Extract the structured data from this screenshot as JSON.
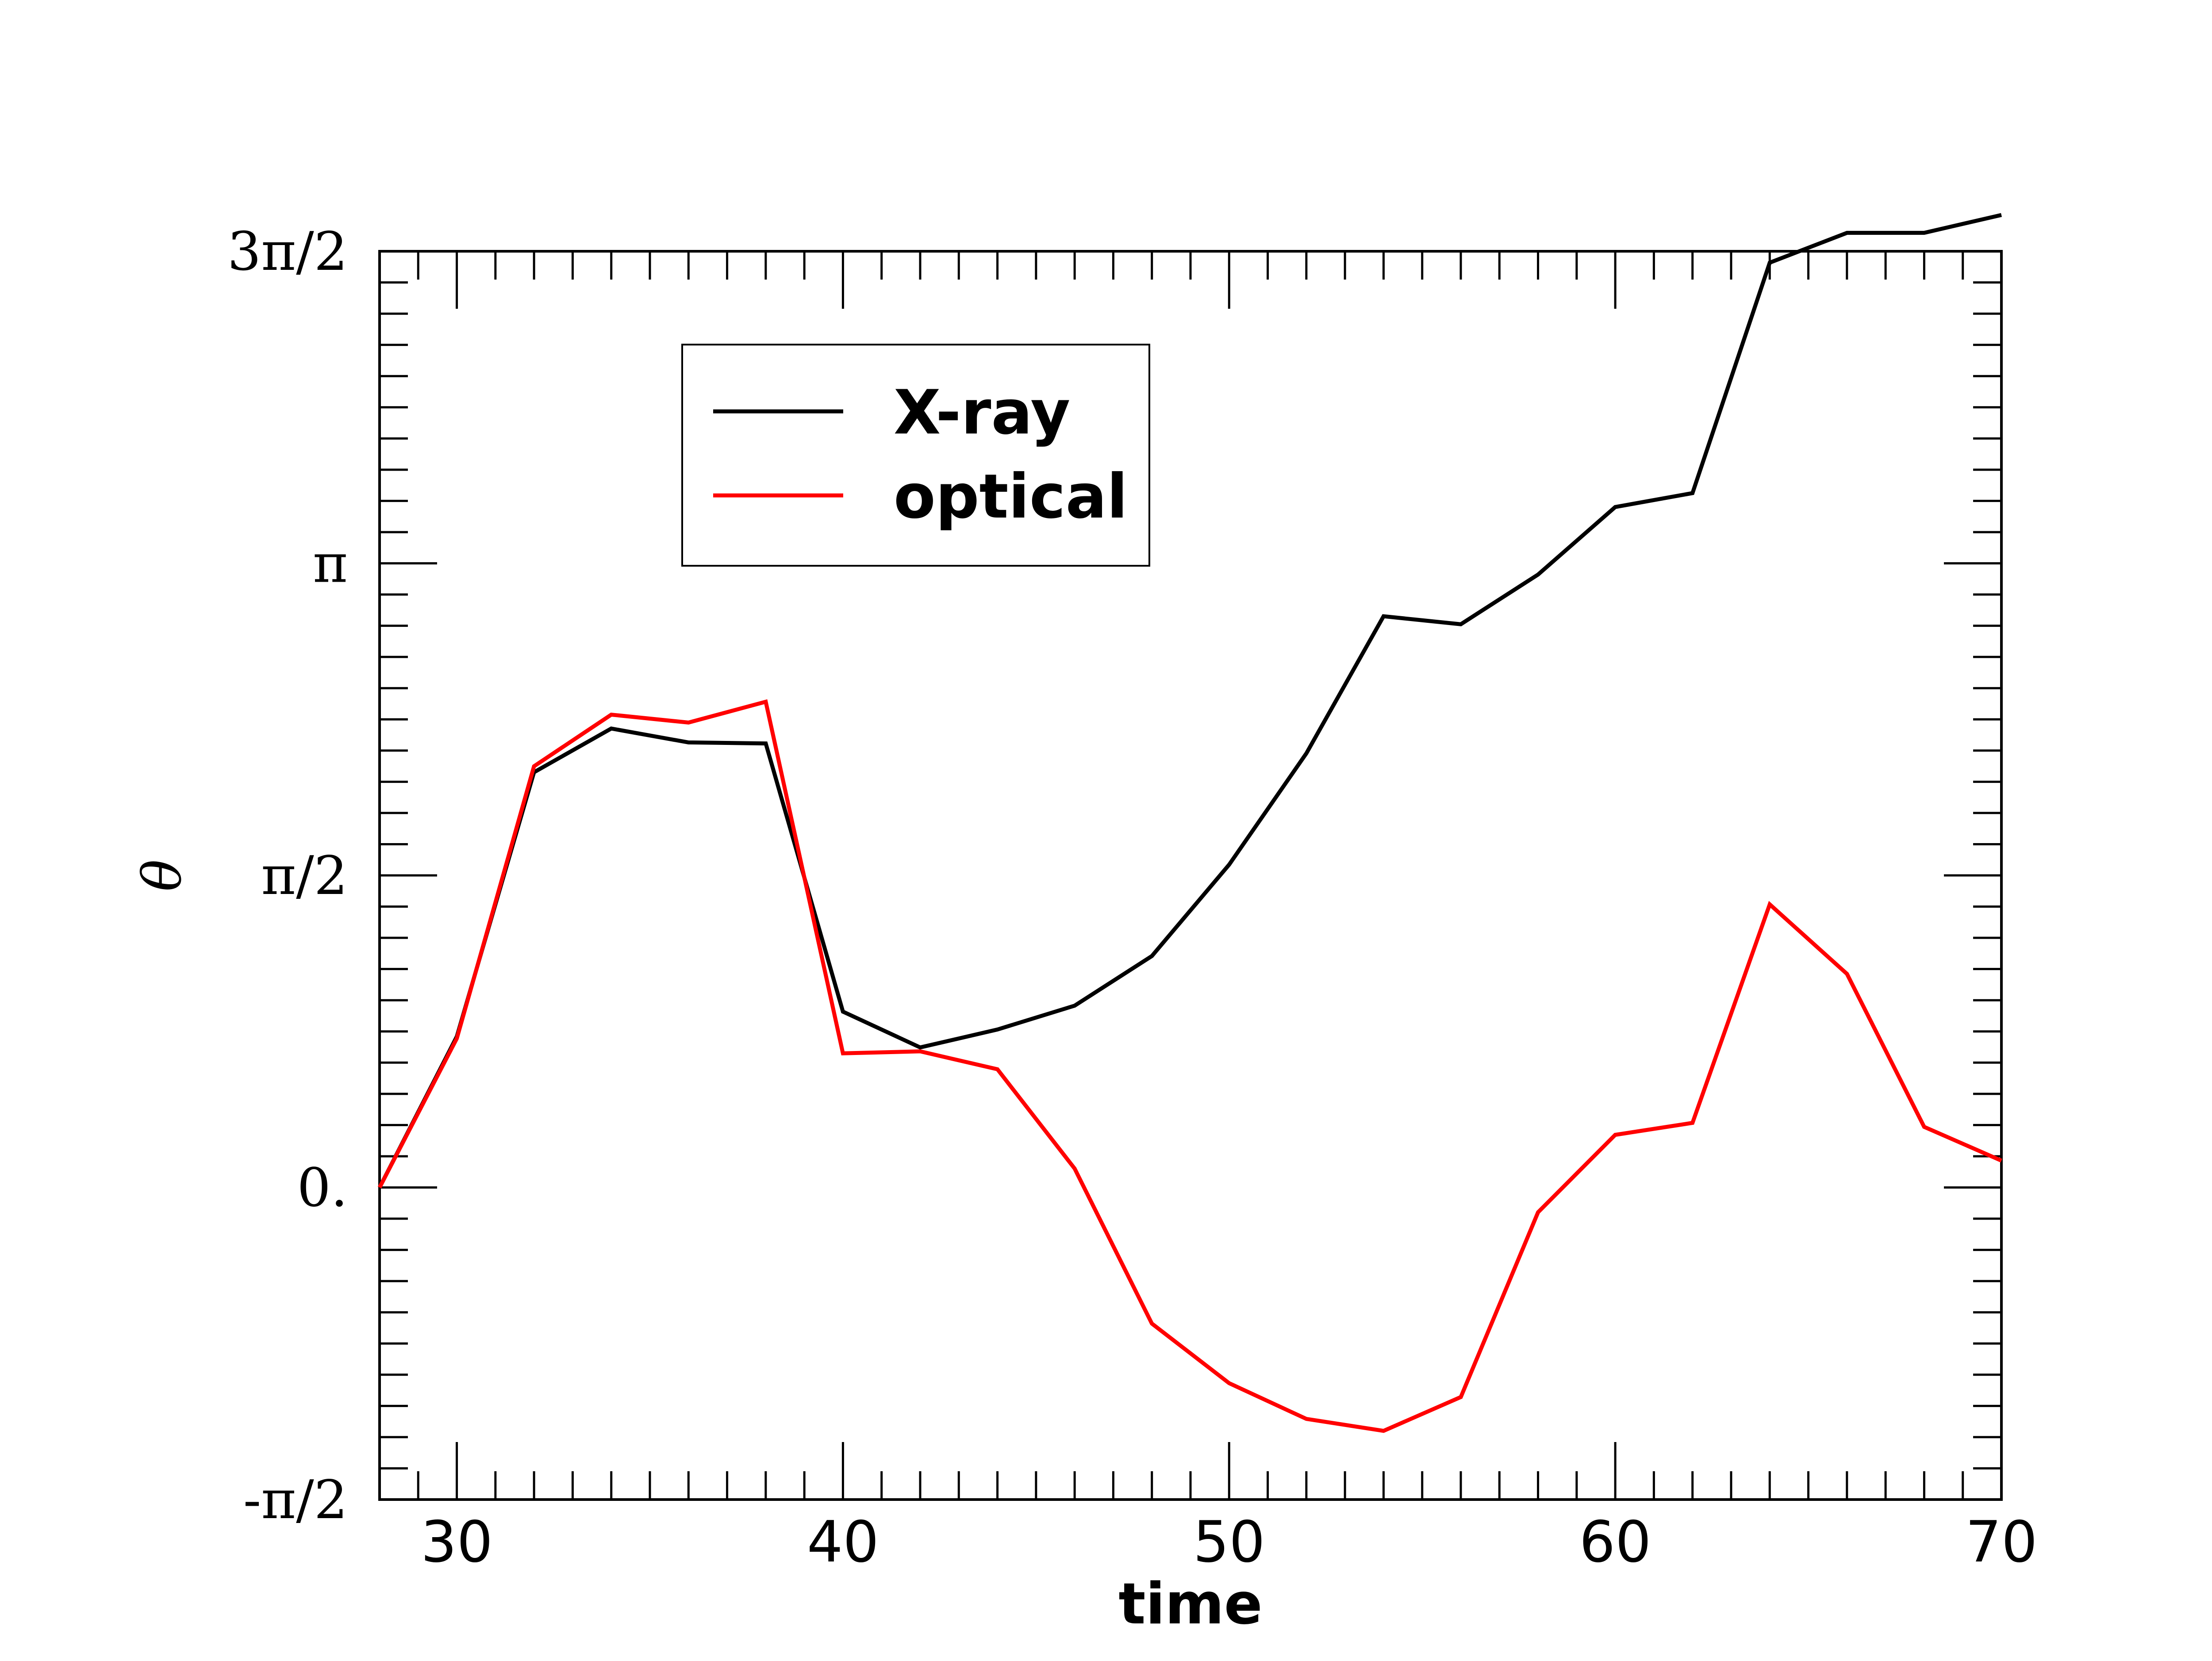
{
  "chart_data": {
    "type": "line",
    "title": "",
    "xlabel": "time",
    "ylabel": "θ",
    "xlim": [
      28,
      70
    ],
    "ylim": [
      -1.5708,
      4.7124
    ],
    "x_ticks": [
      {
        "value": 30,
        "label": "30"
      },
      {
        "value": 40,
        "label": "40"
      },
      {
        "value": 50,
        "label": "50"
      },
      {
        "value": 60,
        "label": "60"
      },
      {
        "value": 70,
        "label": "70"
      }
    ],
    "y_ticks": [
      {
        "value": -1.5708,
        "label": "-π/2"
      },
      {
        "value": 0,
        "label": "0."
      },
      {
        "value": 1.5708,
        "label": "π/2"
      },
      {
        "value": 3.1416,
        "label": "π"
      },
      {
        "value": 4.7124,
        "label": "3π/2"
      }
    ],
    "grid": false,
    "legend_position": "upper-left",
    "series": [
      {
        "name": "X-ray",
        "color": "#000000",
        "x": [
          28,
          30,
          32,
          34,
          36,
          38,
          40,
          42,
          44,
          46,
          48,
          50,
          52,
          54,
          56,
          58,
          60,
          62,
          64,
          66,
          68,
          70
        ],
        "y": [
          0.0,
          0.76,
          2.09,
          2.31,
          2.24,
          2.235,
          0.885,
          0.705,
          0.795,
          0.915,
          1.165,
          1.625,
          2.185,
          2.875,
          2.835,
          3.085,
          3.425,
          3.495,
          4.655,
          4.805,
          4.805,
          4.895
        ]
      },
      {
        "name": "optical",
        "color": "#ff0000",
        "x": [
          28,
          30,
          32,
          34,
          36,
          38,
          40,
          42,
          44,
          46,
          48,
          50,
          52,
          54,
          56,
          58,
          60,
          62,
          64,
          66,
          68,
          70
        ],
        "y": [
          0.0,
          0.75,
          2.12,
          2.38,
          2.34,
          2.445,
          0.675,
          0.685,
          0.595,
          0.095,
          -0.685,
          -0.985,
          -1.165,
          -1.225,
          -1.055,
          -0.125,
          0.265,
          0.325,
          1.425,
          1.075,
          0.305,
          0.135
        ]
      }
    ]
  }
}
